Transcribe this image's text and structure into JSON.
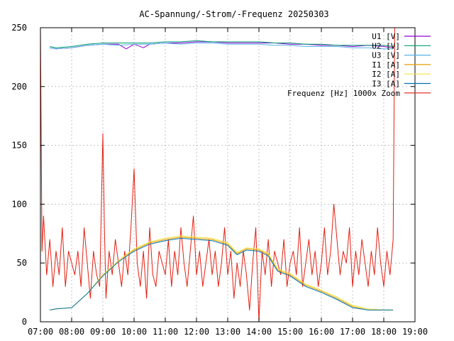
{
  "chart_data": {
    "type": "line",
    "title": "AC-Spannung/-Strom/-Frequenz 20250303",
    "xlabel": "",
    "ylabel": "",
    "grid": true,
    "legend_position": "top-right",
    "x_ticks": [
      "07:00",
      "08:00",
      "09:00",
      "10:00",
      "11:00",
      "12:00",
      "13:00",
      "14:00",
      "15:00",
      "16:00",
      "17:00",
      "18:00",
      "19:00"
    ],
    "y_ticks": [
      "0",
      "50",
      "100",
      "150",
      "200",
      "250"
    ],
    "xlim_hours": [
      7,
      19
    ],
    "ylim": [
      0,
      250
    ],
    "series": [
      {
        "name": "U1 [V]",
        "color": "#9400d3",
        "x": [
          7.3,
          7.5,
          8.0,
          8.5,
          9.0,
          9.5,
          9.75,
          10.0,
          10.3,
          10.5,
          11.0,
          11.5,
          12.0,
          12.5,
          13.0,
          13.5,
          14.0,
          14.5,
          15.0,
          15.5,
          16.0,
          16.5,
          17.0,
          17.5,
          18.0,
          18.3
        ],
        "values": [
          233,
          232,
          233,
          235,
          236,
          236,
          232,
          236,
          233,
          236,
          237,
          237,
          238,
          238,
          237,
          237,
          237,
          237,
          236,
          236,
          235,
          235,
          234,
          235,
          234,
          233
        ]
      },
      {
        "name": "U2 [V]",
        "color": "#009e73",
        "x": [
          7.3,
          7.5,
          8.0,
          8.5,
          9.0,
          9.5,
          10.0,
          10.5,
          11.0,
          11.5,
          12.0,
          12.5,
          13.0,
          13.5,
          14.0,
          14.5,
          15.0,
          15.5,
          16.0,
          16.5,
          17.0,
          17.5,
          18.0,
          18.3
        ],
        "values": [
          234,
          233,
          234,
          236,
          237,
          237,
          237,
          237,
          238,
          238,
          239,
          238,
          238,
          238,
          238,
          237,
          237,
          236,
          236,
          235,
          235,
          235,
          235,
          234
        ]
      },
      {
        "name": "U3 [V]",
        "color": "#56b4e9",
        "x": [
          7.3,
          7.5,
          8.0,
          8.5,
          9.0,
          9.5,
          10.0,
          10.5,
          11.0,
          11.5,
          12.0,
          12.5,
          13.0,
          13.5,
          14.0,
          14.5,
          15.0,
          15.5,
          16.0,
          16.5,
          17.0,
          17.5,
          18.0,
          18.3
        ],
        "values": [
          233,
          232,
          233,
          235,
          236,
          235,
          236,
          236,
          237,
          236,
          237,
          237,
          236,
          236,
          236,
          235,
          235,
          234,
          234,
          234,
          233,
          233,
          232,
          232
        ]
      },
      {
        "name": "I1 [A]",
        "color": "#e69f00",
        "x": [
          7.3,
          7.5,
          8.0,
          8.5,
          9.0,
          9.5,
          10.0,
          10.5,
          11.0,
          11.5,
          12.0,
          12.5,
          13.0,
          13.3,
          13.6,
          14.0,
          14.3,
          14.6,
          15.0,
          15.5,
          16.0,
          16.5,
          17.0,
          17.5,
          18.0,
          18.3
        ],
        "values": [
          10,
          11,
          12,
          24,
          40,
          52,
          61,
          67,
          70,
          72,
          71,
          70,
          66,
          58,
          62,
          61,
          57,
          44,
          40,
          31,
          26,
          20,
          13,
          10,
          10,
          10
        ]
      },
      {
        "name": "I2 [A]",
        "color": "#f0e442",
        "x": [
          7.3,
          7.5,
          8.0,
          8.5,
          9.0,
          9.5,
          10.0,
          10.5,
          11.0,
          11.5,
          12.0,
          12.5,
          13.0,
          13.3,
          13.6,
          14.0,
          14.3,
          14.6,
          15.0,
          15.5,
          16.0,
          16.5,
          17.0,
          17.5,
          18.0,
          18.3
        ],
        "values": [
          10,
          11,
          12,
          24,
          40,
          52,
          62,
          68,
          71,
          73,
          72,
          71,
          67,
          59,
          63,
          62,
          58,
          45,
          41,
          32,
          27,
          21,
          14,
          11,
          10,
          10
        ]
      },
      {
        "name": "I3 [A]",
        "color": "#0072b2",
        "x": [
          7.3,
          7.5,
          8.0,
          8.5,
          9.0,
          9.5,
          10.0,
          10.5,
          11.0,
          11.5,
          12.0,
          12.5,
          13.0,
          13.3,
          13.6,
          14.0,
          14.3,
          14.6,
          15.0,
          15.5,
          16.0,
          16.5,
          17.0,
          17.5,
          18.0,
          18.3
        ],
        "values": [
          10,
          11,
          12,
          24,
          39,
          51,
          60,
          66,
          69,
          71,
          70,
          69,
          65,
          57,
          61,
          60,
          56,
          43,
          39,
          30,
          25,
          19,
          12,
          10,
          10,
          10
        ]
      },
      {
        "name": "Frequenz [Hz] 1000x Zoom",
        "color": "#e51e10",
        "x": [
          7.0,
          7.05,
          7.1,
          7.2,
          7.3,
          7.4,
          7.5,
          7.6,
          7.7,
          7.8,
          7.9,
          8.0,
          8.1,
          8.2,
          8.3,
          8.4,
          8.5,
          8.6,
          8.7,
          8.8,
          8.9,
          9.0,
          9.05,
          9.1,
          9.2,
          9.3,
          9.4,
          9.5,
          9.6,
          9.7,
          9.8,
          9.9,
          10.0,
          10.1,
          10.2,
          10.3,
          10.4,
          10.5,
          10.6,
          10.7,
          10.8,
          10.9,
          11.0,
          11.1,
          11.2,
          11.3,
          11.4,
          11.5,
          11.6,
          11.7,
          11.8,
          11.9,
          12.0,
          12.1,
          12.2,
          12.3,
          12.4,
          12.5,
          12.6,
          12.7,
          12.8,
          12.9,
          13.0,
          13.1,
          13.2,
          13.3,
          13.4,
          13.5,
          13.6,
          13.7,
          13.8,
          13.9,
          14.0,
          14.1,
          14.2,
          14.3,
          14.4,
          14.5,
          14.6,
          14.7,
          14.8,
          14.9,
          15.0,
          15.1,
          15.2,
          15.3,
          15.4,
          15.5,
          15.6,
          15.7,
          15.8,
          15.9,
          16.0,
          16.1,
          16.2,
          16.3,
          16.4,
          16.5,
          16.6,
          16.7,
          16.8,
          16.9,
          17.0,
          17.1,
          17.2,
          17.3,
          17.4,
          17.5,
          17.6,
          17.7,
          17.8,
          17.9,
          18.0,
          18.1,
          18.2,
          18.3,
          18.35
        ],
        "values": [
          250,
          60,
          90,
          40,
          70,
          30,
          60,
          40,
          80,
          30,
          60,
          50,
          40,
          60,
          30,
          80,
          50,
          20,
          60,
          40,
          30,
          160,
          80,
          20,
          60,
          40,
          70,
          50,
          30,
          60,
          40,
          80,
          130,
          50,
          30,
          60,
          20,
          80,
          40,
          30,
          60,
          50,
          40,
          70,
          30,
          60,
          40,
          80,
          50,
          30,
          60,
          90,
          40,
          60,
          30,
          50,
          70,
          40,
          60,
          30,
          50,
          80,
          40,
          60,
          20,
          50,
          30,
          60,
          40,
          10,
          50,
          80,
          0,
          60,
          40,
          70,
          30,
          60,
          50,
          40,
          70,
          30,
          50,
          60,
          40,
          80,
          30,
          50,
          70,
          40,
          60,
          30,
          50,
          80,
          40,
          60,
          100,
          70,
          40,
          60,
          50,
          80,
          30,
          60,
          40,
          70,
          50,
          30,
          60,
          40,
          80,
          50,
          30,
          60,
          40,
          70,
          250
        ]
      }
    ]
  }
}
